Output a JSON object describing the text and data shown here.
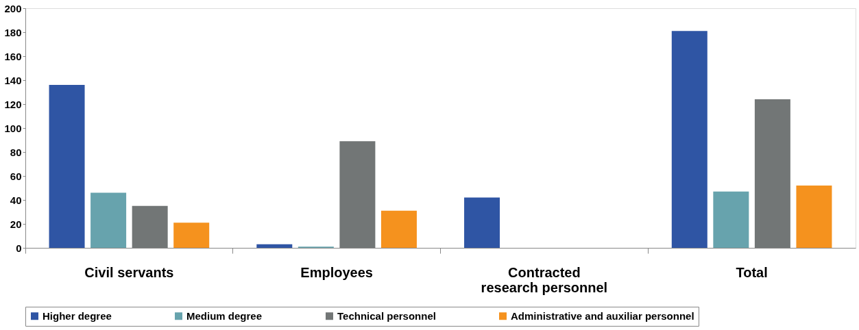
{
  "chart_data": {
    "type": "bar",
    "categories": [
      "Civil servants",
      "Employees",
      "Contracted research personnel",
      "Total"
    ],
    "series": [
      {
        "name": "Higher degree",
        "color": "#2f55a4",
        "values": [
          136,
          3,
          42,
          181
        ]
      },
      {
        "name": "Medium degree",
        "color": "#67a3ad",
        "values": [
          46,
          1,
          0,
          47
        ]
      },
      {
        "name": "Technical personnel",
        "color": "#727676",
        "values": [
          35,
          89,
          0,
          124
        ]
      },
      {
        "name": "Administrative and auxiliar personnel",
        "color": "#f5921e",
        "values": [
          21,
          31,
          0,
          52
        ]
      }
    ],
    "ylim": [
      0,
      200
    ],
    "yticks": [
      0,
      20,
      40,
      60,
      80,
      100,
      120,
      140,
      160,
      180,
      200
    ],
    "grid": false,
    "legend": "bottom"
  }
}
